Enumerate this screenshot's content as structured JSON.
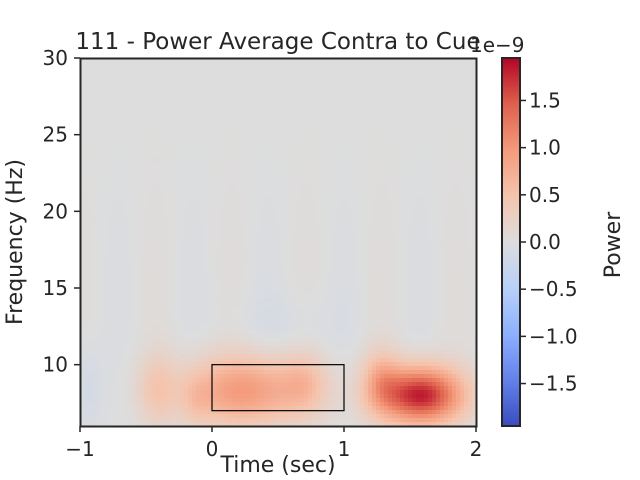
{
  "chart_data": {
    "type": "heatmap",
    "title": "111 - Power Average Contra to Cue",
    "xlabel": "Time (sec)",
    "ylabel": "Frequency (Hz)",
    "xlim": [
      -1,
      2
    ],
    "ylim": [
      6,
      30
    ],
    "x_ticks": [
      -1,
      0,
      1,
      2
    ],
    "x_tick_labels": [
      "−1",
      "0",
      "1",
      "2"
    ],
    "y_ticks": [
      10,
      15,
      20,
      25,
      30
    ],
    "y_tick_labels": [
      "10",
      "15",
      "20",
      "25",
      "30"
    ],
    "colormap": "coolwarm",
    "color_range": [
      -1.95e-09,
      1.95e-09
    ],
    "colorbar": {
      "label": "Power",
      "offset_text": "1e−9",
      "ticks": [
        -1.5,
        -1.0,
        -0.5,
        0.0,
        0.5,
        1.0,
        1.5
      ],
      "tick_labels": [
        "−1.5",
        "−1.0",
        "−0.5",
        "0.0",
        "0.5",
        "1.0",
        "1.5"
      ]
    },
    "blobs": [
      {
        "t": 0.25,
        "f": 8.3,
        "sigma_t": 0.33,
        "sigma_f": 1.6,
        "power": 9.5e-10
      },
      {
        "t": 0.7,
        "f": 8.8,
        "sigma_t": 0.12,
        "sigma_f": 1.3,
        "power": 3.5e-10
      },
      {
        "t": 1.58,
        "f": 8.0,
        "sigma_t": 0.22,
        "sigma_f": 1.3,
        "power": 1.85e-09
      },
      {
        "t": 1.28,
        "f": 9.0,
        "sigma_t": 0.1,
        "sigma_f": 1.4,
        "power": 5.5e-10
      },
      {
        "t": -0.42,
        "f": 8.4,
        "sigma_t": 0.1,
        "sigma_f": 1.6,
        "power": 3.5e-10
      },
      {
        "t": -0.12,
        "f": 7.6,
        "sigma_t": 0.08,
        "sigma_f": 1.2,
        "power": 2e-10
      },
      {
        "t": -0.95,
        "f": 8.5,
        "sigma_t": 0.08,
        "sigma_f": 2.0,
        "power": -1.5e-10
      },
      {
        "t": 0.55,
        "f": 12.5,
        "sigma_t": 0.3,
        "sigma_f": 1.5,
        "power": -8e-11
      }
    ],
    "roi_box": {
      "t_start": 0.0,
      "t_end": 1.0,
      "f_start": 7.0,
      "f_end": 10.0
    }
  }
}
